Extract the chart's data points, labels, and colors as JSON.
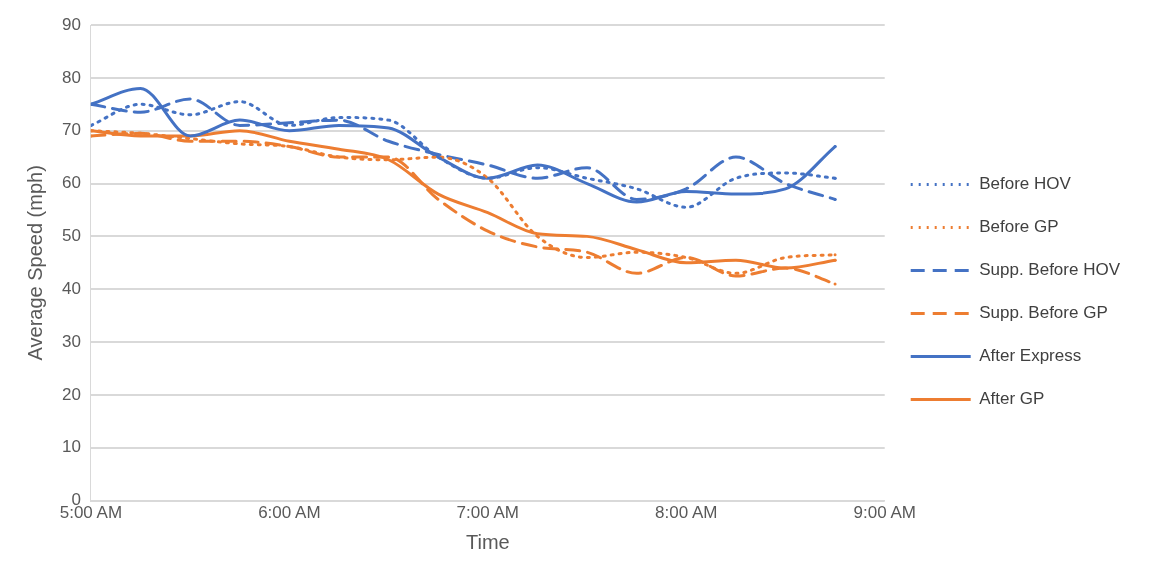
{
  "chart_data": {
    "type": "line",
    "xlabel": "Time",
    "ylabel": "Average Speed (mph)",
    "x": [
      5,
      5.25,
      5.5,
      5.75,
      6,
      6.25,
      6.5,
      6.75,
      7,
      7.25,
      7.5,
      7.75,
      8,
      8.25,
      8.5,
      8.75
    ],
    "xlim": [
      5,
      9
    ],
    "xticks": [
      {
        "value": 5,
        "label": "5:00 AM"
      },
      {
        "value": 6,
        "label": "6:00 AM"
      },
      {
        "value": 7,
        "label": "7:00 AM"
      },
      {
        "value": 8,
        "label": "8:00 AM"
      },
      {
        "value": 9,
        "label": "9:00 AM"
      }
    ],
    "ylim": [
      0,
      90
    ],
    "yticks": [
      0,
      10,
      20,
      30,
      40,
      50,
      60,
      70,
      80,
      90
    ],
    "grid": "y",
    "legend": "right",
    "marker": "none",
    "series": [
      {
        "name": "Before HOV",
        "color": "#4472c4",
        "line_style": "dotted",
        "values": [
          71,
          75,
          73,
          75.5,
          71,
          72.5,
          72,
          65,
          61,
          63,
          61,
          59,
          55.5,
          61,
          62,
          61
        ]
      },
      {
        "name": "Before GP",
        "color": "#ed7d31",
        "line_style": "dotted",
        "values": [
          70,
          69.5,
          68.5,
          67.5,
          67,
          65,
          64.5,
          65,
          61,
          50,
          46,
          47,
          46,
          43,
          46,
          46.5
        ]
      },
      {
        "name": "Supp. Before HOV",
        "color": "#4472c4",
        "line_style": "dashed",
        "values": [
          75,
          73.5,
          76,
          71,
          71.5,
          72,
          68,
          65.5,
          63.5,
          61,
          63,
          57,
          59,
          65,
          60,
          57
        ]
      },
      {
        "name": "Supp. Before GP",
        "color": "#ed7d31",
        "line_style": "dashed",
        "values": [
          69,
          69.5,
          68,
          68,
          67,
          65,
          65,
          57,
          51,
          48,
          47,
          43,
          46,
          42.5,
          44,
          41
        ]
      },
      {
        "name": "After Express",
        "color": "#4472c4",
        "line_style": "solid",
        "values": [
          75,
          78,
          69,
          72,
          70,
          71,
          70.5,
          65,
          61,
          63.5,
          60,
          56.5,
          58.5,
          58,
          59,
          67
        ]
      },
      {
        "name": "After GP",
        "color": "#ed7d31",
        "line_style": "solid",
        "values": [
          70,
          69,
          69,
          70,
          68,
          66.5,
          64.5,
          58,
          54.5,
          50.5,
          50,
          47.5,
          45,
          45.5,
          44,
          45.5
        ]
      }
    ]
  }
}
